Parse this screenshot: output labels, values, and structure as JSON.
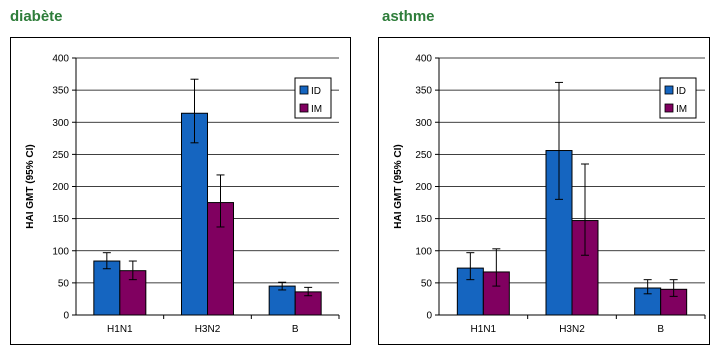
{
  "chart_data": [
    {
      "type": "bar",
      "title": "diabète",
      "ylabel": "HAI GMT (95% CI)",
      "xlabel": "",
      "categories": [
        "H1N1",
        "H3N2",
        "B"
      ],
      "ylim": [
        0,
        400
      ],
      "yticks": [
        0,
        50,
        100,
        150,
        200,
        250,
        300,
        350,
        400
      ],
      "grid": true,
      "legend_position": "right",
      "series": [
        {
          "name": "ID",
          "color": "#1565c0",
          "values": [
            84,
            314,
            45
          ],
          "ci_low": [
            72,
            268,
            39
          ],
          "ci_high": [
            97,
            367,
            51
          ]
        },
        {
          "name": "IM",
          "color": "#800060",
          "values": [
            69,
            175,
            36
          ],
          "ci_low": [
            55,
            137,
            30
          ],
          "ci_high": [
            84,
            218,
            43
          ]
        }
      ]
    },
    {
      "type": "bar",
      "title": "asthme",
      "ylabel": "HAI GMT (95% CI)",
      "xlabel": "",
      "categories": [
        "H1N1",
        "H3N2",
        "B"
      ],
      "ylim": [
        0,
        400
      ],
      "yticks": [
        0,
        50,
        100,
        150,
        200,
        250,
        300,
        350,
        400
      ],
      "grid": true,
      "legend_position": "top-right",
      "series": [
        {
          "name": "ID",
          "color": "#1565c0",
          "values": [
            73,
            256,
            42
          ],
          "ci_low": [
            55,
            180,
            33
          ],
          "ci_high": [
            97,
            362,
            55
          ]
        },
        {
          "name": "IM",
          "color": "#800060",
          "values": [
            67,
            147,
            40
          ],
          "ci_low": [
            45,
            93,
            29
          ],
          "ci_high": [
            103,
            235,
            55
          ]
        }
      ]
    }
  ]
}
